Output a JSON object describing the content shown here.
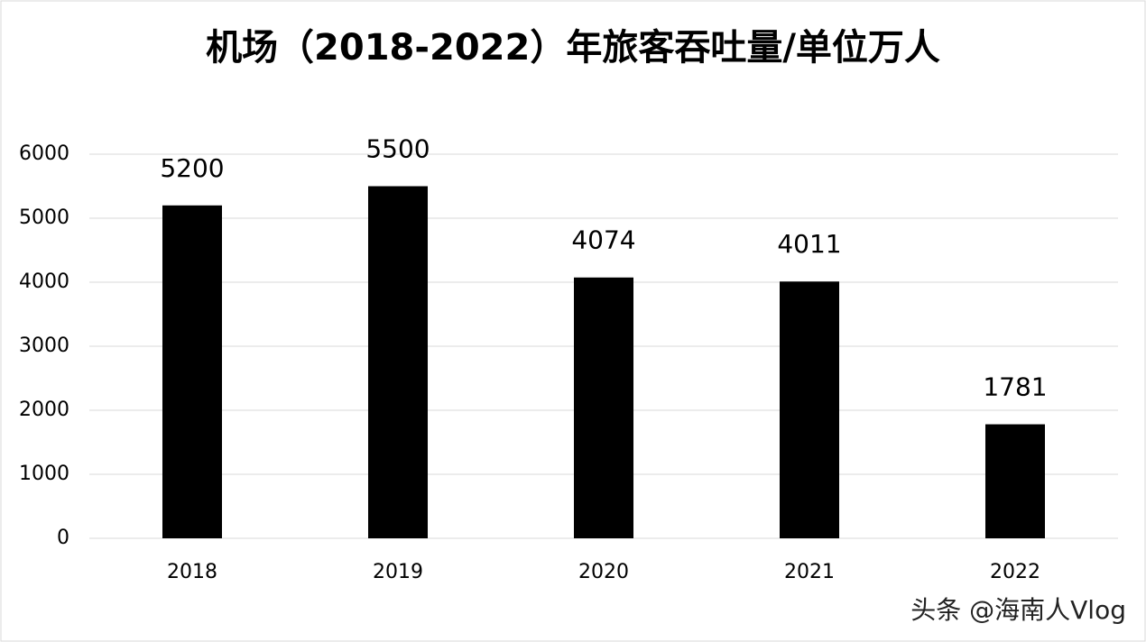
{
  "chart_data": {
    "type": "bar",
    "title": "机场（2018-2022）年旅客吞吐量/单位万人",
    "categories": [
      "2018",
      "2019",
      "2020",
      "2021",
      "2022"
    ],
    "values": [
      5200,
      5500,
      4074,
      4011,
      1781
    ],
    "color": "#000000",
    "ylim": [
      0,
      6000
    ],
    "yticks": [
      0,
      1000,
      2000,
      3000,
      4000,
      5000,
      6000
    ],
    "grid": true
  },
  "watermark": "头条 @海南人Vlog"
}
